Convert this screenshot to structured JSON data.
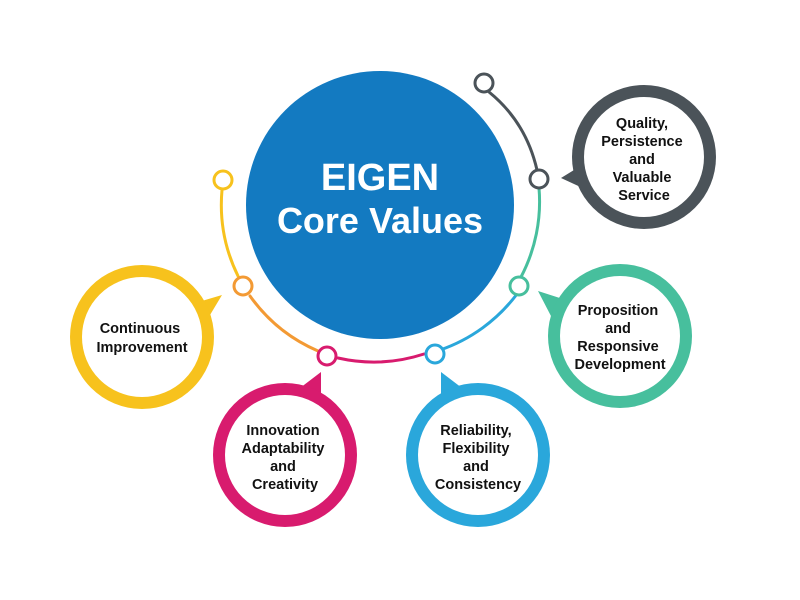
{
  "center": {
    "line1": "EIGEN",
    "line2": "Core Values",
    "color": "#137ac1"
  },
  "values": [
    {
      "id": "quality",
      "lines": [
        "Quality,",
        "Persistence",
        "and",
        "Valuable",
        "Service"
      ],
      "color": "#4b5359"
    },
    {
      "id": "proposition",
      "lines": [
        "Proposition",
        "and",
        "Responsive",
        "Development"
      ],
      "color": "#47bf9d"
    },
    {
      "id": "reliability",
      "lines": [
        "Reliability,",
        "Flexibility",
        "and",
        "Consistency"
      ],
      "color": "#2aa7db"
    },
    {
      "id": "innovation",
      "lines": [
        "Innovation",
        "Adaptability",
        "and",
        "Creativity"
      ],
      "color": "#d81b6e"
    },
    {
      "id": "continuous",
      "lines": [
        "Continuous",
        "Improvement"
      ],
      "color": "#f7c21d"
    }
  ],
  "connector_colors": {
    "dark": "#4b5359",
    "green": "#47bf9d",
    "blue": "#2aa7db",
    "magenta": "#d81b6e",
    "orange": "#f39a34",
    "yellow": "#f7c21d"
  }
}
